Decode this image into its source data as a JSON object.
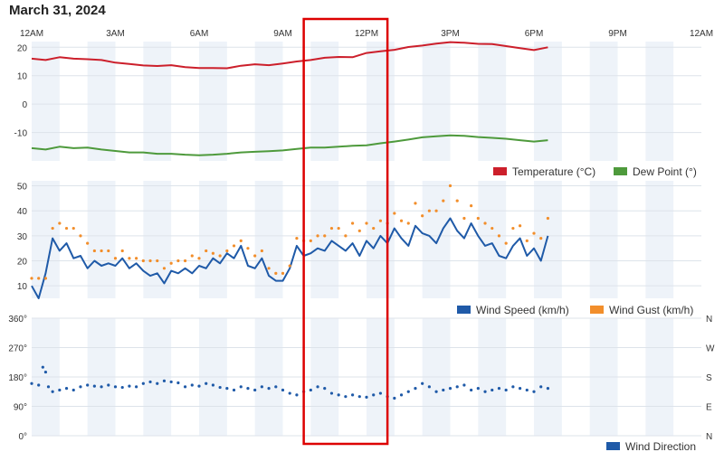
{
  "page": {
    "title": "March 31, 2024"
  },
  "time_axis": {
    "labels": [
      "12AM",
      "3AM",
      "6AM",
      "9AM",
      "12PM",
      "3PM",
      "6PM",
      "9PM",
      "12AM"
    ],
    "range_hours": [
      0,
      24
    ]
  },
  "highlight": {
    "start_hour": 9.75,
    "end_hour": 12.75,
    "color": "#dd0000"
  },
  "chart_data": [
    {
      "type": "line",
      "x_unit": "hour of day",
      "xlim": [
        0,
        24
      ],
      "ylim": [
        -20,
        22
      ],
      "yticks": [
        "20",
        "10",
        "0",
        "-10"
      ],
      "ytick_values": [
        20,
        10,
        0,
        -10
      ],
      "grid": true,
      "legend_position": "bottom-right",
      "series": [
        {
          "name": "Temperature (°C)",
          "color": "#cc1f2b",
          "x": [
            0,
            0.5,
            1,
            1.5,
            2,
            2.5,
            3,
            3.5,
            4,
            4.5,
            5,
            5.5,
            6,
            6.5,
            7,
            7.5,
            8,
            8.5,
            9,
            9.5,
            10,
            10.5,
            11,
            11.5,
            12,
            12.5,
            13,
            13.5,
            14,
            14.5,
            15,
            15.5,
            16,
            16.5,
            17,
            17.5,
            18,
            18.5
          ],
          "y": [
            16,
            15.5,
            16.5,
            16,
            15.8,
            15.5,
            14.6,
            14.1,
            13.6,
            13.4,
            13.7,
            13.0,
            12.7,
            12.7,
            12.6,
            13.5,
            14.0,
            13.7,
            14.3,
            15.0,
            15.5,
            16.3,
            16.6,
            16.5,
            18.0,
            18.6,
            19.1,
            20.1,
            20.6,
            21.3,
            21.8,
            21.6,
            21.2,
            21.1,
            20.4,
            19.7,
            19.0,
            20.0
          ]
        },
        {
          "name": "Dew Point (°)",
          "color": "#4e9a3c",
          "x": [
            0,
            0.5,
            1,
            1.5,
            2,
            2.5,
            3,
            3.5,
            4,
            4.5,
            5,
            5.5,
            6,
            6.5,
            7,
            7.5,
            8,
            8.5,
            9,
            9.5,
            10,
            10.5,
            11,
            11.5,
            12,
            12.5,
            13,
            13.5,
            14,
            14.5,
            15,
            15.5,
            16,
            16.5,
            17,
            17.5,
            18,
            18.5
          ],
          "y": [
            -15.5,
            -16,
            -15,
            -15.5,
            -15.3,
            -16,
            -16.5,
            -17,
            -17,
            -17.5,
            -17.5,
            -17.8,
            -18,
            -17.8,
            -17.5,
            -17,
            -16.8,
            -16.6,
            -16.3,
            -15.8,
            -15.3,
            -15.3,
            -15.0,
            -14.7,
            -14.5,
            -13.8,
            -13.2,
            -12.5,
            -11.7,
            -11.3,
            -11.0,
            -11.2,
            -11.6,
            -11.9,
            -12.2,
            -12.7,
            -13.2,
            -12.7
          ]
        }
      ]
    },
    {
      "type": "line",
      "x_unit": "hour of day",
      "xlim": [
        0,
        24
      ],
      "ylim": [
        5,
        52
      ],
      "yticks": [
        "50",
        "40",
        "30",
        "20",
        "10"
      ],
      "ytick_values": [
        50,
        40,
        30,
        20,
        10
      ],
      "grid": true,
      "legend_position": "bottom-right",
      "series": [
        {
          "name": "Wind Speed (km/h)",
          "color": "#1f5aa8",
          "style": "line",
          "x": [
            0,
            0.25,
            0.5,
            0.75,
            1,
            1.25,
            1.5,
            1.75,
            2,
            2.25,
            2.5,
            2.75,
            3,
            3.25,
            3.5,
            3.75,
            4,
            4.25,
            4.5,
            4.75,
            5,
            5.25,
            5.5,
            5.75,
            6,
            6.25,
            6.5,
            6.75,
            7,
            7.25,
            7.5,
            7.75,
            8,
            8.25,
            8.5,
            8.75,
            9,
            9.25,
            9.5,
            9.75,
            10,
            10.25,
            10.5,
            10.75,
            11,
            11.25,
            11.5,
            11.75,
            12,
            12.25,
            12.5,
            12.75,
            13,
            13.25,
            13.5,
            13.75,
            14,
            14.25,
            14.5,
            14.75,
            15,
            15.25,
            15.5,
            15.75,
            16,
            16.25,
            16.5,
            16.75,
            17,
            17.25,
            17.5,
            17.75,
            18,
            18.25,
            18.5
          ],
          "y": [
            10,
            5,
            15,
            29,
            24,
            27,
            21,
            22,
            17,
            20,
            18,
            19,
            18,
            21,
            17,
            19,
            16,
            14,
            15,
            11,
            16,
            15,
            17,
            15,
            18,
            17,
            21,
            19,
            23,
            21,
            26,
            18,
            17,
            21,
            14,
            12,
            12,
            17,
            26,
            22,
            23,
            25,
            24,
            28,
            26,
            24,
            27,
            22,
            28,
            25,
            30,
            27,
            33,
            29,
            26,
            34,
            31,
            30,
            27,
            33,
            37,
            32,
            29,
            35,
            30,
            26,
            27,
            22,
            21,
            26,
            29,
            22,
            25,
            20,
            30
          ]
        },
        {
          "name": "Wind Gust (km/h)",
          "color": "#f28e2b",
          "style": "dots",
          "x": [
            0,
            0.25,
            0.5,
            0.75,
            1,
            1.25,
            1.5,
            1.75,
            2,
            2.25,
            2.5,
            2.75,
            3,
            3.25,
            3.5,
            3.75,
            4,
            4.25,
            4.5,
            4.75,
            5,
            5.25,
            5.5,
            5.75,
            6,
            6.25,
            6.5,
            6.75,
            7,
            7.25,
            7.5,
            7.75,
            8,
            8.25,
            8.5,
            8.75,
            9,
            9.25,
            9.5,
            9.75,
            10,
            10.25,
            10.5,
            10.75,
            11,
            11.25,
            11.5,
            11.75,
            12,
            12.25,
            12.5,
            12.75,
            13,
            13.25,
            13.5,
            13.75,
            14,
            14.25,
            14.5,
            14.75,
            15,
            15.25,
            15.5,
            15.75,
            16,
            16.25,
            16.5,
            16.75,
            17,
            17.25,
            17.5,
            17.75,
            18,
            18.25,
            18.5
          ],
          "y": [
            13,
            13,
            13,
            33,
            35,
            33,
            33,
            30,
            27,
            24,
            24,
            24,
            21,
            24,
            21,
            21,
            20,
            20,
            20,
            17,
            19,
            20,
            20,
            22,
            21,
            24,
            23,
            22,
            24,
            26,
            28,
            25,
            22,
            24,
            17,
            15,
            15,
            18,
            29,
            28,
            28,
            30,
            30,
            33,
            33,
            30,
            35,
            32,
            35,
            33,
            36,
            35,
            39,
            36,
            35,
            43,
            38,
            40,
            40,
            44,
            50,
            44,
            37,
            42,
            37,
            35,
            33,
            30,
            27,
            33,
            34,
            28,
            31,
            29,
            37
          ]
        }
      ]
    },
    {
      "type": "scatter",
      "x_unit": "hour of day",
      "xlim": [
        0,
        24
      ],
      "ylim": [
        0,
        360
      ],
      "yticks": [
        "360°",
        "270°",
        "180°",
        "90°",
        "0°"
      ],
      "ytick_values": [
        360,
        270,
        180,
        90,
        0
      ],
      "right_ticks": [
        "N",
        "W",
        "S",
        "E",
        "N"
      ],
      "grid": true,
      "legend_position": "bottom-right",
      "series": [
        {
          "name": "Wind Direction",
          "color": "#1f5aa8",
          "x": [
            0,
            0.25,
            0.4,
            0.5,
            0.6,
            0.75,
            1,
            1.25,
            1.5,
            1.75,
            2,
            2.25,
            2.5,
            2.75,
            3,
            3.25,
            3.5,
            3.75,
            4,
            4.25,
            4.5,
            4.75,
            5,
            5.25,
            5.5,
            5.75,
            6,
            6.25,
            6.5,
            6.75,
            7,
            7.25,
            7.5,
            7.75,
            8,
            8.25,
            8.5,
            8.75,
            9,
            9.25,
            9.5,
            9.75,
            10,
            10.25,
            10.5,
            10.75,
            11,
            11.25,
            11.5,
            11.75,
            12,
            12.25,
            12.5,
            12.75,
            13,
            13.25,
            13.5,
            13.75,
            14,
            14.25,
            14.5,
            14.75,
            15,
            15.25,
            15.5,
            15.75,
            16,
            16.25,
            16.5,
            16.75,
            17,
            17.25,
            17.5,
            17.75,
            18,
            18.25,
            18.5
          ],
          "y": [
            160,
            155,
            210,
            195,
            150,
            135,
            140,
            145,
            140,
            150,
            155,
            152,
            150,
            155,
            150,
            148,
            152,
            150,
            160,
            165,
            160,
            168,
            165,
            162,
            150,
            155,
            152,
            160,
            155,
            148,
            145,
            140,
            150,
            145,
            140,
            150,
            145,
            150,
            140,
            130,
            125,
            135,
            140,
            150,
            145,
            130,
            125,
            120,
            125,
            120,
            118,
            125,
            130,
            120,
            115,
            125,
            135,
            145,
            160,
            150,
            135,
            140,
            145,
            150,
            155,
            140,
            145,
            135,
            140,
            145,
            140,
            150,
            145,
            140,
            135,
            150,
            145
          ]
        }
      ]
    }
  ]
}
